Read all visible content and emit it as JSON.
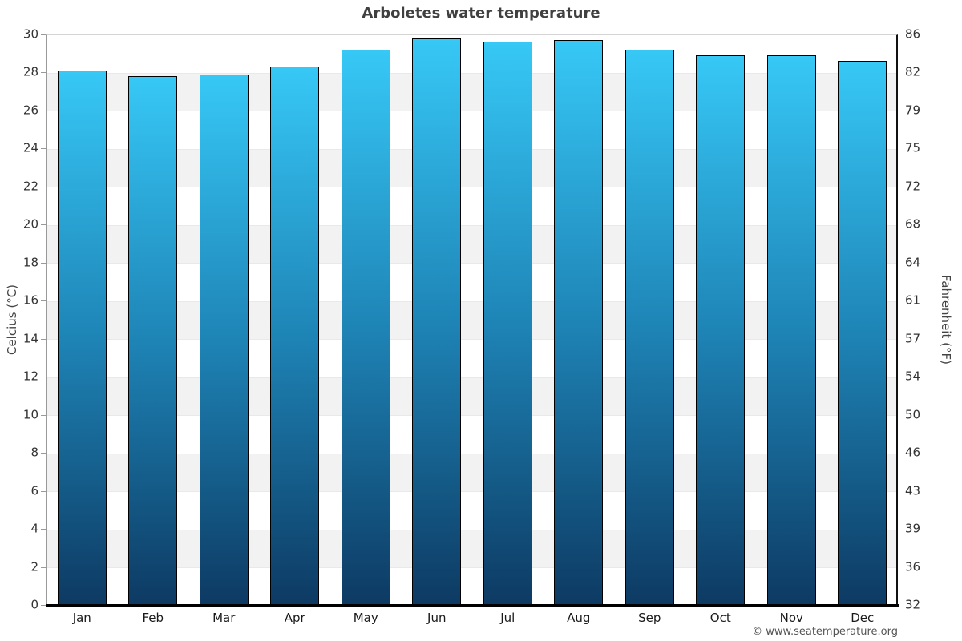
{
  "title": "Arboletes water temperature",
  "footer": {
    "attribution": "© www.seatemperature.org"
  },
  "chart_data": {
    "type": "bar",
    "title": "Arboletes water temperature",
    "categories": [
      "Jan",
      "Feb",
      "Mar",
      "Apr",
      "May",
      "Jun",
      "Jul",
      "Aug",
      "Sep",
      "Oct",
      "Nov",
      "Dec"
    ],
    "series": [
      {
        "name": "Water temperature",
        "unit": "°C",
        "values": [
          28.1,
          27.8,
          27.9,
          28.3,
          29.2,
          29.8,
          29.6,
          29.7,
          29.2,
          28.9,
          28.9,
          28.6
        ]
      }
    ],
    "ylabel": "Celcius (°C)",
    "ylabel_right": "Fahrenheit (°F)",
    "ylim": [
      0,
      30
    ],
    "celsius_ticks": [
      30,
      28,
      26,
      24,
      22,
      20,
      18,
      16,
      14,
      12,
      10,
      8,
      6,
      4,
      2,
      0
    ],
    "fahrenheit_ticks": [
      86,
      82,
      79,
      75,
      72,
      68,
      64,
      61,
      57,
      54,
      50,
      46,
      43,
      39,
      36,
      32
    ],
    "grid": "alternating horizontal bands every 2°C",
    "legend_position": "none",
    "colors": {
      "bar_gradient_top": "#37c8f6",
      "bar_gradient_mid": "#1e84b6",
      "bar_gradient_bottom": "#0d3a63",
      "bar_border": "#000000",
      "band_shade": "#f2f2f2",
      "band_plain": "#ffffff",
      "axis_left_line": "#999999",
      "axis_right_line": "#111111",
      "axis_bottom_line": "#000000",
      "title_color": "#404040",
      "tick_label_color": "#333333",
      "attribution_color": "#555555"
    }
  }
}
